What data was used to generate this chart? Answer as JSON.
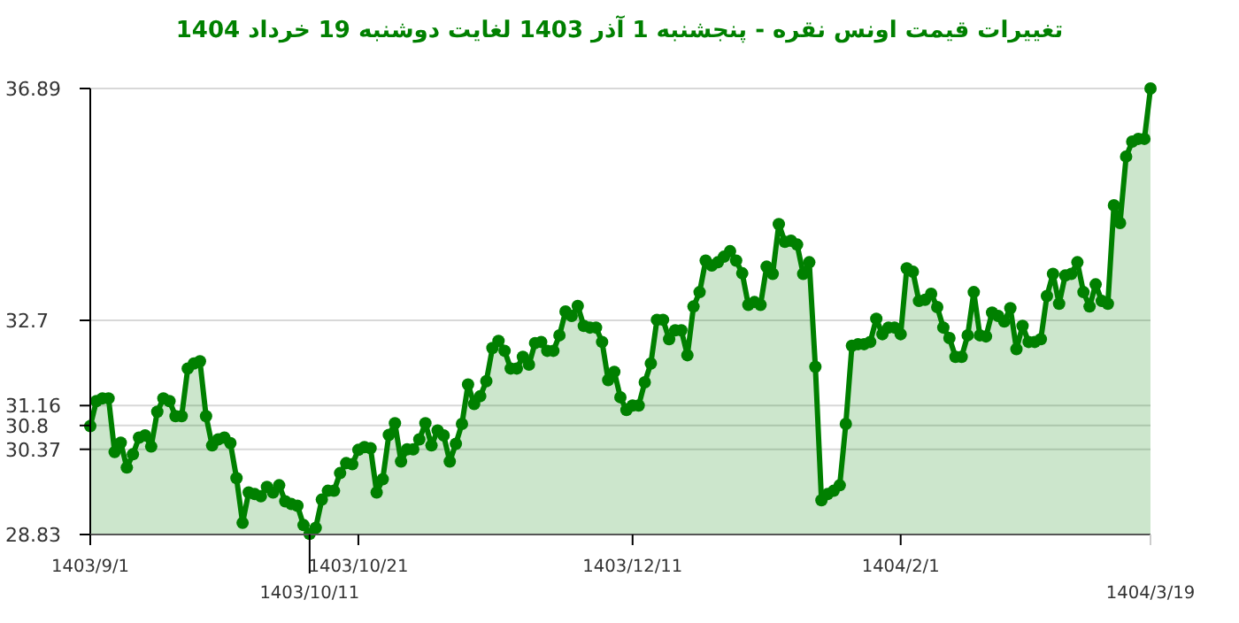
{
  "chart_data": {
    "type": "area",
    "title": "تغییرات قیمت اونس نقره - پنجشنبه  1 آذر 1403 لغایت  دوشنبه  19 خرداد 1404",
    "categories": [
      "1403/9/1",
      null,
      null,
      null,
      null,
      null,
      null,
      null,
      null,
      null,
      null,
      null,
      null,
      null,
      null,
      null,
      null,
      null,
      null,
      null,
      null,
      null,
      null,
      null,
      null,
      null,
      null,
      null,
      null,
      null,
      null,
      null,
      null,
      null,
      null,
      null,
      "1403/10/11",
      null,
      null,
      null,
      null,
      null,
      null,
      null,
      "1403/10/21",
      null,
      null,
      null,
      null,
      null,
      null,
      null,
      null,
      null,
      null,
      null,
      null,
      null,
      null,
      null,
      null,
      null,
      null,
      null,
      null,
      null,
      null,
      null,
      null,
      null,
      null,
      null,
      null,
      null,
      null,
      null,
      null,
      null,
      null,
      null,
      null,
      null,
      null,
      null,
      null,
      null,
      null,
      null,
      null,
      "1403/12/11",
      null,
      null,
      null,
      null,
      null,
      null,
      null,
      null,
      null,
      null,
      null,
      null,
      null,
      null,
      null,
      null,
      null,
      null,
      null,
      null,
      null,
      null,
      null,
      null,
      null,
      null,
      null,
      null,
      null,
      null,
      null,
      null,
      null,
      null,
      null,
      null,
      null,
      null,
      null,
      null,
      null,
      null,
      null,
      "1404/2/1",
      null,
      null,
      null,
      null,
      null,
      null,
      null,
      null,
      null,
      null,
      null,
      null,
      null,
      null,
      null,
      null,
      null,
      null,
      null,
      null,
      null,
      null,
      null,
      null,
      null,
      null,
      null,
      null,
      null,
      null,
      null,
      null,
      null,
      null,
      null,
      null,
      null,
      null,
      null,
      null,
      "1404/3/19"
    ],
    "series": [
      {
        "color": "#008000",
        "values": [
          30.79,
          31.24,
          31.29,
          31.29,
          30.32,
          30.49,
          30.04,
          30.28,
          30.58,
          30.62,
          30.42,
          31.05,
          31.29,
          31.24,
          30.97,
          30.97,
          31.83,
          31.92,
          31.96,
          30.97,
          30.44,
          30.55,
          30.58,
          30.48,
          29.85,
          29.04,
          29.59,
          29.56,
          29.52,
          29.69,
          29.59,
          29.72,
          29.43,
          29.38,
          29.35,
          29.0,
          28.84,
          28.95,
          29.46,
          29.62,
          29.62,
          29.94,
          30.12,
          30.1,
          30.36,
          30.41,
          30.39,
          29.59,
          29.83,
          30.63,
          30.84,
          30.15,
          30.37,
          30.37,
          30.55,
          30.84,
          30.44,
          30.71,
          30.62,
          30.15,
          30.47,
          30.83,
          31.54,
          31.19,
          31.33,
          31.6,
          32.2,
          32.33,
          32.15,
          31.83,
          31.83,
          32.04,
          31.9,
          32.29,
          32.31,
          32.15,
          32.15,
          32.43,
          32.86,
          32.78,
          32.96,
          32.6,
          32.57,
          32.57,
          32.31,
          31.62,
          31.77,
          31.31,
          31.08,
          31.16,
          31.16,
          31.58,
          31.92,
          32.71,
          32.71,
          32.36,
          32.52,
          32.52,
          32.07,
          32.95,
          33.21,
          33.78,
          33.69,
          33.75,
          33.85,
          33.95,
          33.78,
          33.55,
          32.98,
          33.03,
          32.98,
          33.67,
          33.54,
          34.44,
          34.12,
          34.14,
          34.07,
          33.54,
          33.75,
          31.86,
          29.45,
          29.56,
          29.62,
          29.72,
          30.83,
          32.24,
          32.27,
          32.27,
          32.31,
          32.73,
          32.45,
          32.57,
          32.57,
          32.45,
          33.64,
          33.58,
          33.05,
          33.07,
          33.18,
          32.94,
          32.57,
          32.38,
          32.04,
          32.04,
          32.43,
          33.21,
          32.43,
          32.41,
          32.84,
          32.78,
          32.68,
          32.92,
          32.18,
          32.6,
          32.31,
          32.31,
          32.36,
          33.14,
          33.54,
          33.0,
          33.51,
          33.54,
          33.75,
          33.21,
          32.95,
          33.35,
          33.05,
          33.0,
          34.78,
          34.46,
          35.66,
          35.93,
          35.98,
          35.98,
          36.89
        ]
      }
    ],
    "ylim": [
      28.83,
      36.89
    ],
    "yticks": [
      28.83,
      30.37,
      30.8,
      31.16,
      32.7,
      36.89
    ],
    "grid": "y",
    "marker": "circle",
    "line_style": "solid"
  }
}
